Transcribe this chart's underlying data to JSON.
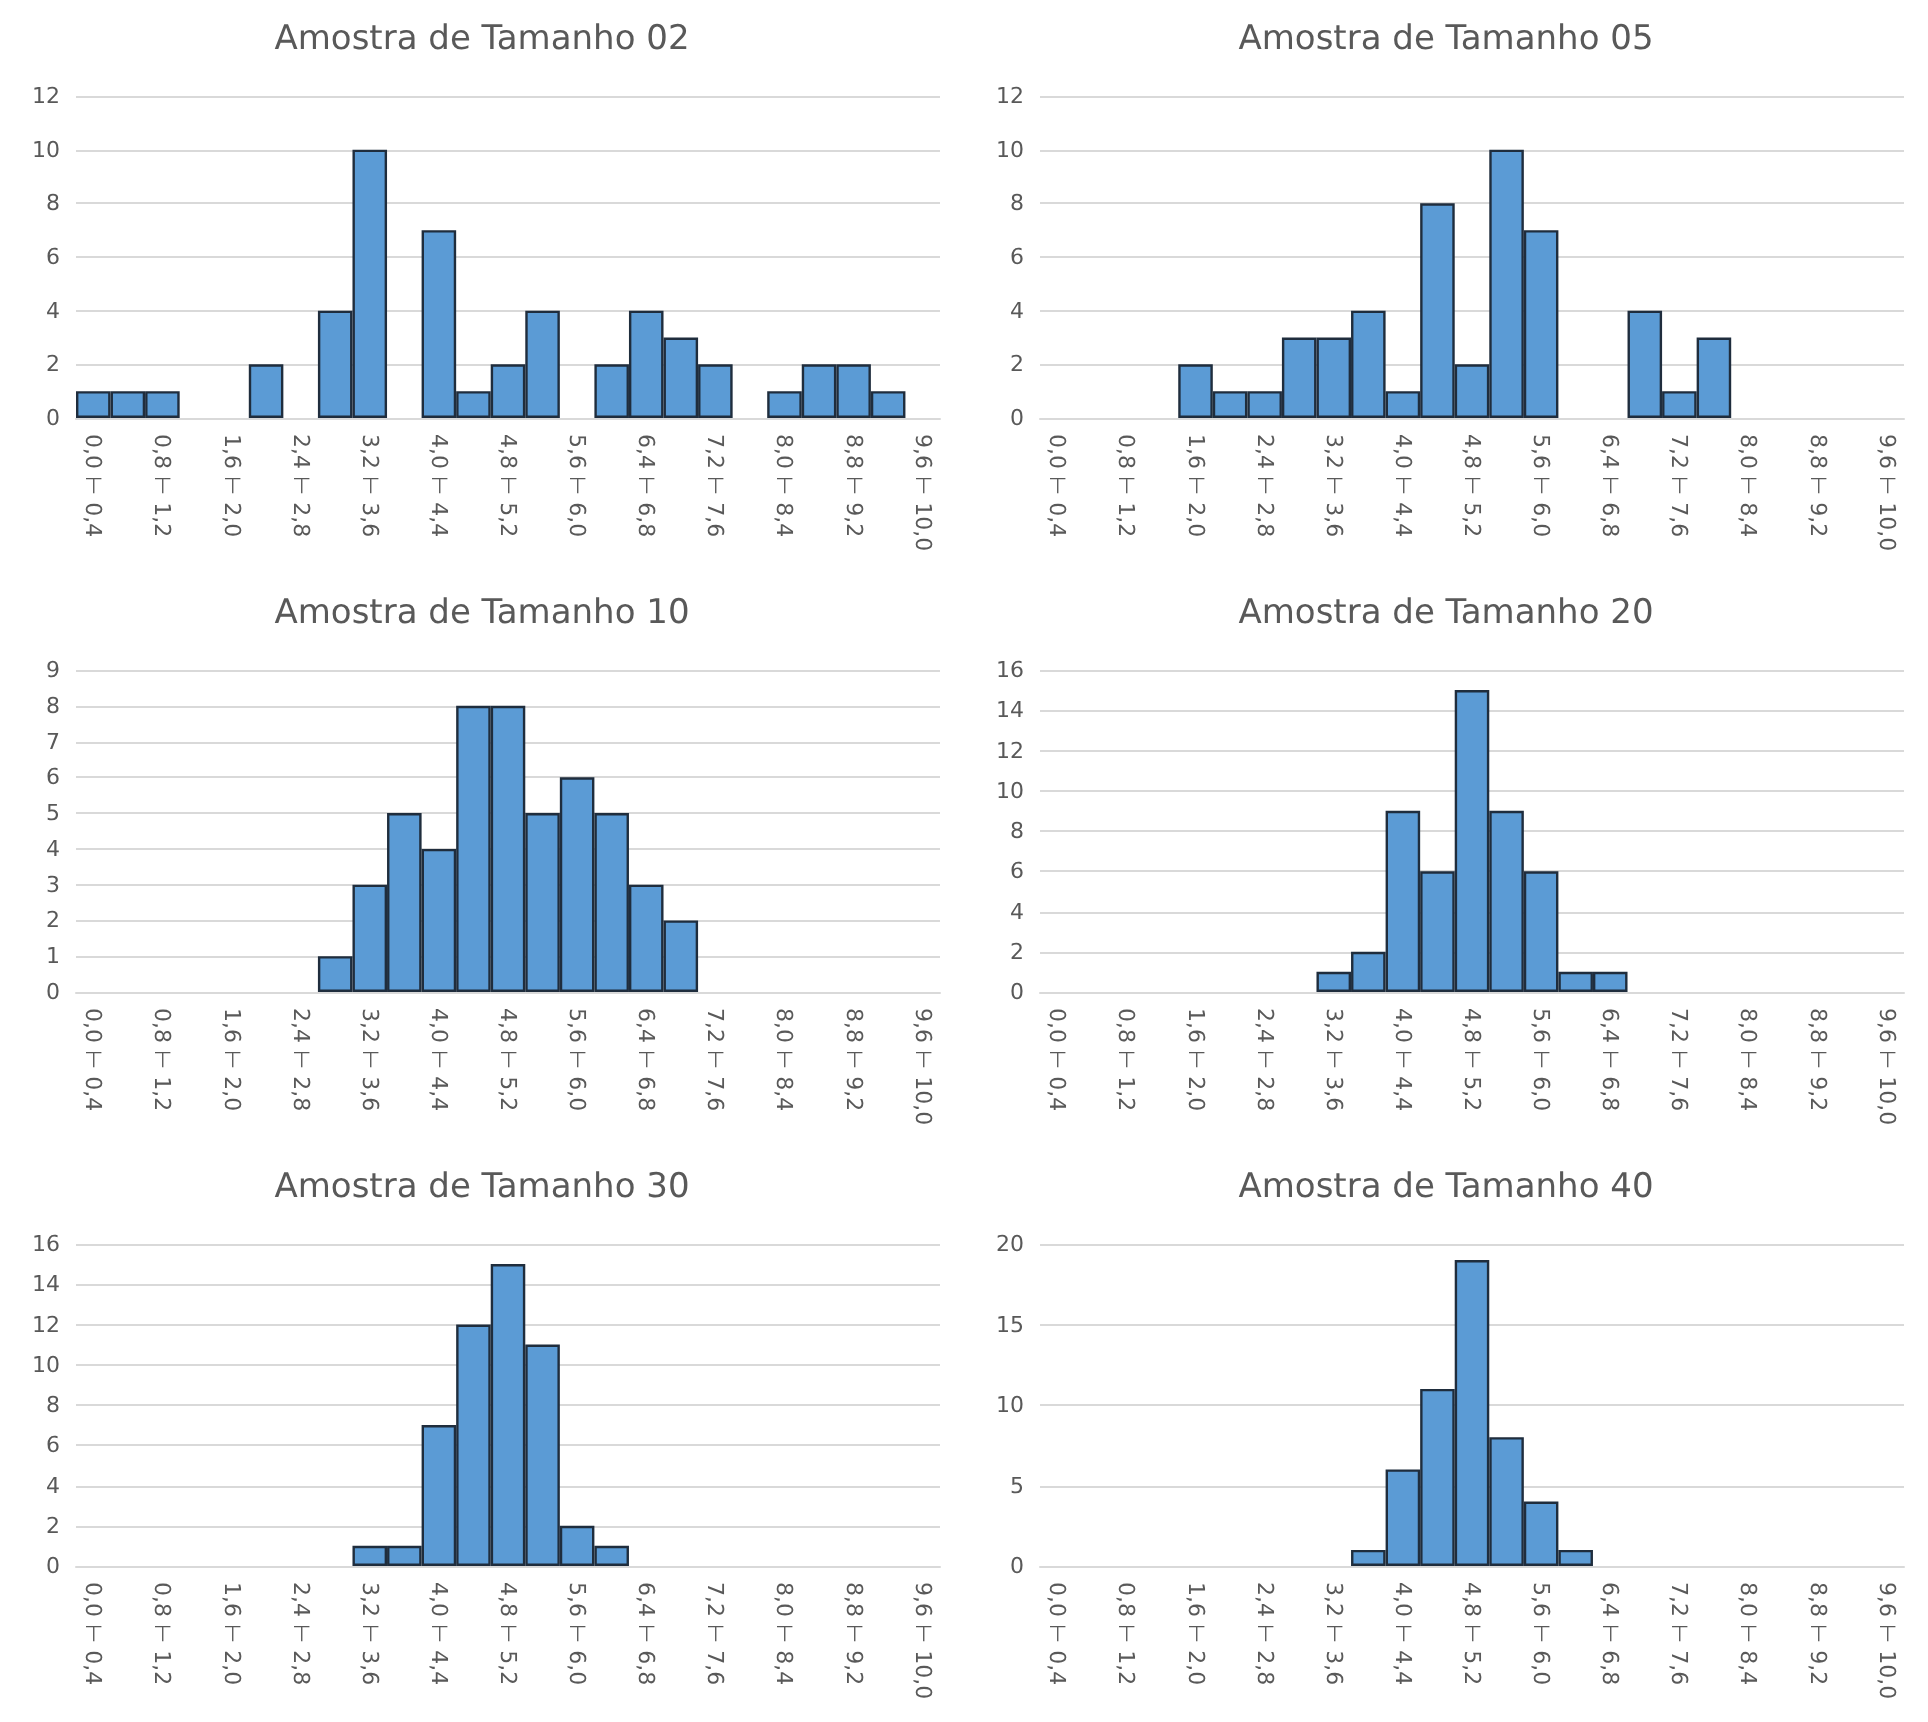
{
  "chart_data": [
    {
      "type": "bar",
      "title": "Amostra de Tamanho 02",
      "categories": [
        "0,0 ⊢ 0,4",
        null,
        "0,8 ⊢ 1,2",
        null,
        "1,6 ⊢ 2,0",
        null,
        "2,4 ⊢ 2,8",
        null,
        "3,2 ⊢ 3,6",
        null,
        "4,0 ⊢ 4,4",
        null,
        "4,8 ⊢ 5,2",
        null,
        "5,6 ⊢ 6,0",
        null,
        "6,4 ⊢ 6,8",
        null,
        "7,2 ⊢ 7,6",
        null,
        "8,0 ⊢ 8,4",
        null,
        "8,8 ⊢ 9,2",
        null,
        "9,6 ⊢ 10,0"
      ],
      "values": [
        1,
        1,
        1,
        0,
        0,
        2,
        0,
        4,
        10,
        0,
        7,
        1,
        2,
        4,
        0,
        2,
        4,
        3,
        2,
        0,
        1,
        2,
        2,
        1,
        0
      ],
      "color": "#5b9bd5",
      "ylim": [
        0,
        12
      ],
      "yticks": [
        0,
        2,
        4,
        6,
        8,
        10,
        12
      ],
      "grid": "y"
    },
    {
      "type": "bar",
      "title": "Amostra de Tamanho 05",
      "categories": [
        "0,0 ⊢ 0,4",
        null,
        "0,8 ⊢ 1,2",
        null,
        "1,6 ⊢ 2,0",
        null,
        "2,4 ⊢ 2,8",
        null,
        "3,2 ⊢ 3,6",
        null,
        "4,0 ⊢ 4,4",
        null,
        "4,8 ⊢ 5,2",
        null,
        "5,6 ⊢ 6,0",
        null,
        "6,4 ⊢ 6,8",
        null,
        "7,2 ⊢ 7,6",
        null,
        "8,0 ⊢ 8,4",
        null,
        "8,8 ⊢ 9,2",
        null,
        "9,6 ⊢ 10,0"
      ],
      "values": [
        0,
        0,
        0,
        0,
        2,
        1,
        1,
        3,
        3,
        4,
        1,
        8,
        2,
        10,
        7,
        0,
        0,
        4,
        1,
        3,
        0,
        0,
        0,
        0,
        0
      ],
      "color": "#5b9bd5",
      "ylim": [
        0,
        12
      ],
      "yticks": [
        0,
        2,
        4,
        6,
        8,
        10,
        12
      ],
      "grid": "y"
    },
    {
      "type": "bar",
      "title": "Amostra de Tamanho 10",
      "categories": [
        "0,0 ⊢ 0,4",
        null,
        "0,8 ⊢ 1,2",
        null,
        "1,6 ⊢ 2,0",
        null,
        "2,4 ⊢ 2,8",
        null,
        "3,2 ⊢ 3,6",
        null,
        "4,0 ⊢ 4,4",
        null,
        "4,8 ⊢ 5,2",
        null,
        "5,6 ⊢ 6,0",
        null,
        "6,4 ⊢ 6,8",
        null,
        "7,2 ⊢ 7,6",
        null,
        "8,0 ⊢ 8,4",
        null,
        "8,8 ⊢ 9,2",
        null,
        "9,6 ⊢ 10,0"
      ],
      "values": [
        0,
        0,
        0,
        0,
        0,
        0,
        0,
        1,
        3,
        5,
        4,
        8,
        8,
        5,
        6,
        5,
        3,
        2,
        0,
        0,
        0,
        0,
        0,
        0,
        0
      ],
      "color": "#5b9bd5",
      "ylim": [
        0,
        9
      ],
      "yticks": [
        0,
        1,
        2,
        3,
        4,
        5,
        6,
        7,
        8,
        9
      ],
      "grid": "y"
    },
    {
      "type": "bar",
      "title": "Amostra de Tamanho 20",
      "categories": [
        "0,0 ⊢ 0,4",
        null,
        "0,8 ⊢ 1,2",
        null,
        "1,6 ⊢ 2,0",
        null,
        "2,4 ⊢ 2,8",
        null,
        "3,2 ⊢ 3,6",
        null,
        "4,0 ⊢ 4,4",
        null,
        "4,8 ⊢ 5,2",
        null,
        "5,6 ⊢ 6,0",
        null,
        "6,4 ⊢ 6,8",
        null,
        "7,2 ⊢ 7,6",
        null,
        "8,0 ⊢ 8,4",
        null,
        "8,8 ⊢ 9,2",
        null,
        "9,6 ⊢ 10,0"
      ],
      "values": [
        0,
        0,
        0,
        0,
        0,
        0,
        0,
        0,
        1,
        2,
        9,
        6,
        15,
        9,
        6,
        1,
        1,
        0,
        0,
        0,
        0,
        0,
        0,
        0,
        0
      ],
      "color": "#5b9bd5",
      "ylim": [
        0,
        16
      ],
      "yticks": [
        0,
        2,
        4,
        6,
        8,
        10,
        12,
        14,
        16
      ],
      "grid": "y"
    },
    {
      "type": "bar",
      "title": "Amostra de Tamanho 30",
      "categories": [
        "0,0 ⊢ 0,4",
        null,
        "0,8 ⊢ 1,2",
        null,
        "1,6 ⊢ 2,0",
        null,
        "2,4 ⊢ 2,8",
        null,
        "3,2 ⊢ 3,6",
        null,
        "4,0 ⊢ 4,4",
        null,
        "4,8 ⊢ 5,2",
        null,
        "5,6 ⊢ 6,0",
        null,
        "6,4 ⊢ 6,8",
        null,
        "7,2 ⊢ 7,6",
        null,
        "8,0 ⊢ 8,4",
        null,
        "8,8 ⊢ 9,2",
        null,
        "9,6 ⊢ 10,0"
      ],
      "values": [
        0,
        0,
        0,
        0,
        0,
        0,
        0,
        0,
        1,
        1,
        7,
        12,
        15,
        11,
        2,
        1,
        0,
        0,
        0,
        0,
        0,
        0,
        0,
        0,
        0
      ],
      "color": "#5b9bd5",
      "ylim": [
        0,
        16
      ],
      "yticks": [
        0,
        2,
        4,
        6,
        8,
        10,
        12,
        14,
        16
      ],
      "grid": "y"
    },
    {
      "type": "bar",
      "title": "Amostra de Tamanho 40",
      "categories": [
        "0,0 ⊢ 0,4",
        null,
        "0,8 ⊢ 1,2",
        null,
        "1,6 ⊢ 2,0",
        null,
        "2,4 ⊢ 2,8",
        null,
        "3,2 ⊢ 3,6",
        null,
        "4,0 ⊢ 4,4",
        null,
        "4,8 ⊢ 5,2",
        null,
        "5,6 ⊢ 6,0",
        null,
        "6,4 ⊢ 6,8",
        null,
        "7,2 ⊢ 7,6",
        null,
        "8,0 ⊢ 8,4",
        null,
        "8,8 ⊢ 9,2",
        null,
        "9,6 ⊢ 10,0"
      ],
      "values": [
        0,
        0,
        0,
        0,
        0,
        0,
        0,
        0,
        0,
        1,
        6,
        11,
        19,
        8,
        4,
        1,
        0,
        0,
        0,
        0,
        0,
        0,
        0,
        0,
        0
      ],
      "color": "#5b9bd5",
      "ylim": [
        0,
        20
      ],
      "yticks": [
        0,
        5,
        10,
        15,
        20
      ],
      "grid": "y"
    }
  ]
}
